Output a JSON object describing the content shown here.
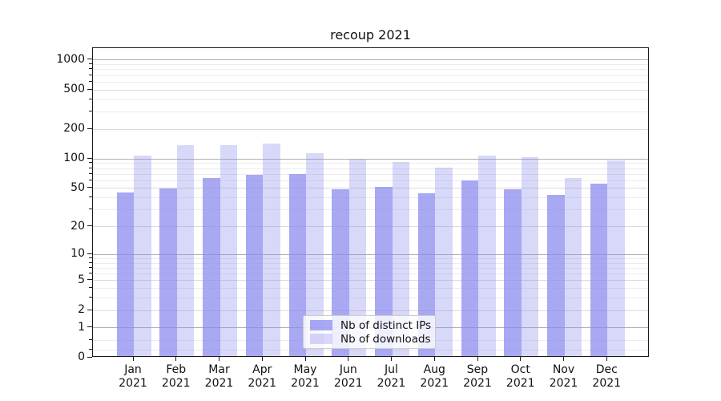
{
  "chart_data": {
    "type": "bar",
    "title": "recoup 2021",
    "categories": [
      "Jan",
      "Feb",
      "Mar",
      "Apr",
      "May",
      "Jun",
      "Jul",
      "Aug",
      "Sep",
      "Oct",
      "Nov",
      "Dec"
    ],
    "category_year": "2021",
    "series": [
      {
        "name": "Nb of distinct IPs",
        "color": "rgba(136,136,238,0.73)",
        "values": [
          44,
          48,
          61,
          66,
          68,
          47,
          50,
          43,
          58,
          47,
          41,
          54
        ]
      },
      {
        "name": "Nb of downloads",
        "color": "rgba(136,136,238,0.33)",
        "values": [
          104,
          133,
          132,
          137,
          110,
          94,
          89,
          78,
          105,
          101,
          61,
          93
        ]
      }
    ],
    "yscale": "symlog",
    "yticks": [
      0,
      1,
      2,
      5,
      10,
      20,
      50,
      100,
      200,
      500,
      1000
    ],
    "yminor_ticks": [
      0.2,
      0.5,
      3,
      4,
      6,
      7,
      8,
      9,
      30,
      40,
      60,
      70,
      80,
      90,
      300,
      400,
      600,
      700,
      800,
      900
    ],
    "ylim": [
      0,
      1300
    ],
    "grid": true,
    "legend_position": "lower center inside"
  },
  "colors": {
    "bar_base": "#8888ee",
    "grid_major": "#b0b0b0",
    "grid_mid": "#dadada",
    "grid_minor": "#ececec",
    "axis": "#1a1a1a",
    "legend_border": "#cccccc"
  }
}
